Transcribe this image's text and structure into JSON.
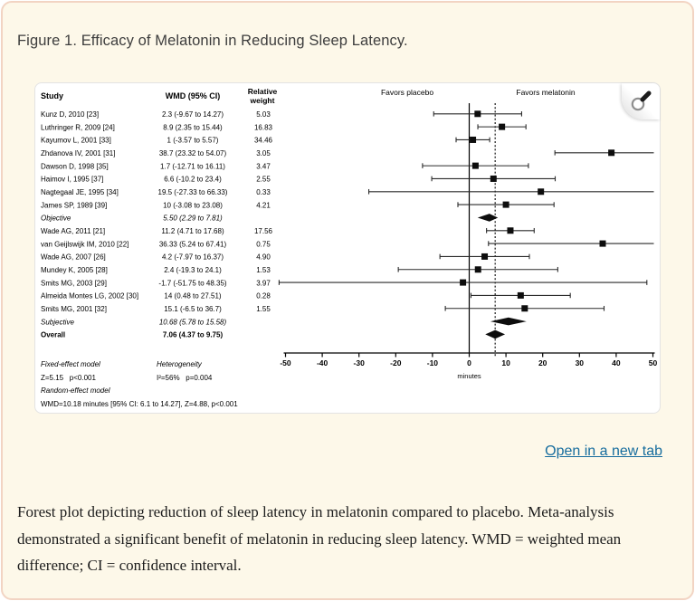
{
  "page": {
    "title": "Figure 1. Efficacy of Melatonin in Reducing Sleep Latency.",
    "open_link": "Open in a new tab",
    "caption": "Forest plot depicting reduction of sleep latency in melatonin compared to placebo. Meta-analysis demonstrated a significant benefit of melatonin in reducing sleep latency. WMD = weighted mean difference; CI = confidence interval.",
    "colors": {
      "card_background": "#fdf8e9",
      "card_border": "#f2d4c3",
      "link_blue": "#176d9e",
      "figure_ink": "#000000"
    }
  },
  "chart_data": {
    "type": "forest",
    "columns": {
      "study": "Study",
      "wmd": "WMD (95% CI)",
      "weight_line1": "Relative",
      "weight_line2": "weight"
    },
    "favors_left": "Favors placebo",
    "favors_right": "Favors melatonin",
    "axis": {
      "min": -50,
      "max": 50,
      "ticks": [
        -50,
        -40,
        -30,
        -20,
        -10,
        0,
        10,
        20,
        30,
        40,
        50
      ],
      "unit_label": "minutes",
      "zero_line": 0,
      "overall_line": 7.06
    },
    "rows": [
      {
        "study": "Kunz D, 2010 [23]",
        "wmd_text": "2.3 (-9.67 to 14.27)",
        "weight": "5.03",
        "est": 2.3,
        "lo": -9.67,
        "hi": 14.27,
        "kind": "study"
      },
      {
        "study": "Luthringer R, 2009 [24]",
        "wmd_text": "8.9 (2.35 to 15.44)",
        "weight": "16.83",
        "est": 8.9,
        "lo": 2.35,
        "hi": 15.44,
        "kind": "study"
      },
      {
        "study": "Kayumov L, 2001 [33]",
        "wmd_text": "1 (-3.57 to 5.57)",
        "weight": "34.46",
        "est": 1,
        "lo": -3.57,
        "hi": 5.57,
        "kind": "study"
      },
      {
        "study": "Zhdanova IV, 2001 [31]",
        "wmd_text": "38.7 (23.32 to 54.07)",
        "weight": "3.05",
        "est": 38.7,
        "lo": 23.32,
        "hi": 54.07,
        "kind": "study"
      },
      {
        "study": "Dawson D, 1998 [35]",
        "wmd_text": "1.7 (-12.71 to 16.11)",
        "weight": "3.47",
        "est": 1.7,
        "lo": -12.71,
        "hi": 16.11,
        "kind": "study"
      },
      {
        "study": "Haimov I, 1995 [37]",
        "wmd_text": "6.6 (-10.2 to 23.4)",
        "weight": "2.55",
        "est": 6.6,
        "lo": -10.2,
        "hi": 23.4,
        "kind": "study"
      },
      {
        "study": "Nagtegaal JE, 1995 [34]",
        "wmd_text": "19.5 (-27.33 to 66.33)",
        "weight": "0.33",
        "est": 19.5,
        "lo": -27.33,
        "hi": 66.33,
        "kind": "study"
      },
      {
        "study": "James SP, 1989 [39]",
        "wmd_text": "10 (-3.08 to 23.08)",
        "weight": "4.21",
        "est": 10,
        "lo": -3.08,
        "hi": 23.08,
        "kind": "study"
      },
      {
        "study": "Objective",
        "wmd_text": "5.50 (2.29 to 7.81)",
        "weight": "",
        "est": 5.5,
        "lo": 2.29,
        "hi": 7.81,
        "kind": "summary"
      },
      {
        "study": "Wade AG, 2011 [21]",
        "wmd_text": "11.2 (4.71 to 17.68)",
        "weight": "17.56",
        "est": 11.2,
        "lo": 4.71,
        "hi": 17.68,
        "kind": "study"
      },
      {
        "study": "van Geijlswijk IM, 2010 [22]",
        "wmd_text": "36.33 (5.24 to 67.41)",
        "weight": "0.75",
        "est": 36.33,
        "lo": 5.24,
        "hi": 67.41,
        "kind": "study"
      },
      {
        "study": "Wade AG, 2007 [26]",
        "wmd_text": "4.2 (-7.97 to 16.37)",
        "weight": "4.90",
        "est": 4.2,
        "lo": -7.97,
        "hi": 16.37,
        "kind": "study"
      },
      {
        "study": "Mundey K, 2005 [28]",
        "wmd_text": "2.4 (-19.3 to 24.1)",
        "weight": "1.53",
        "est": 2.4,
        "lo": -19.3,
        "hi": 24.1,
        "kind": "study"
      },
      {
        "study": "Smits MG, 2003 [29]",
        "wmd_text": "-1.7 (-51.75 to 48.35)",
        "weight": "3.97",
        "est": -1.7,
        "lo": -51.75,
        "hi": 48.35,
        "kind": "study"
      },
      {
        "study": "Almeida Montes LG, 2002 [30]",
        "wmd_text": "14 (0.48 to 27.51)",
        "weight": "0.28",
        "est": 14,
        "lo": 0.48,
        "hi": 27.51,
        "kind": "study"
      },
      {
        "study": "Smits MG, 2001 [32]",
        "wmd_text": "15.1 (-6.5 to 36.7)",
        "weight": "1.55",
        "est": 15.1,
        "lo": -6.5,
        "hi": 36.7,
        "kind": "study"
      },
      {
        "study": "Subjective",
        "wmd_text": "10.68 (5.78 to 15.58)",
        "weight": "",
        "est": 10.68,
        "lo": 5.78,
        "hi": 15.58,
        "kind": "summary"
      },
      {
        "study": "Overall",
        "wmd_text": "7.06 (4.37 to 9.75)",
        "weight": "",
        "est": 7.06,
        "lo": 4.37,
        "hi": 9.75,
        "kind": "overall"
      }
    ],
    "stats": {
      "fixed_label": "Fixed-effect model",
      "fixed_values": "Z=5.15   p<0.001",
      "het_label": "Heterogeneity",
      "het_values": "I²=56%   p=0.004",
      "random_label": "Random-effect model",
      "random_values": "WMD=10.18 minutes [95% CI: 6.1 to 14.27], Z=4.88, p<0.001"
    }
  }
}
